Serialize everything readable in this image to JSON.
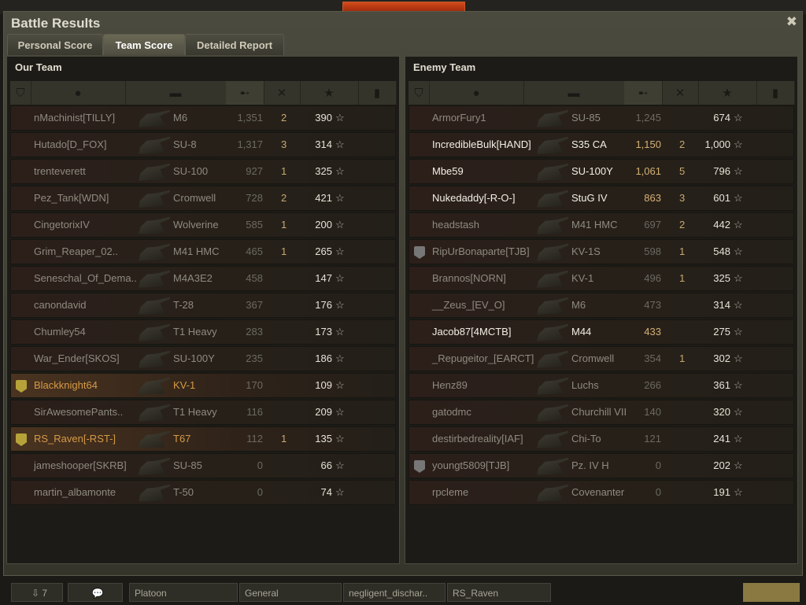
{
  "window": {
    "title": "Battle Results",
    "close_icon": "close-icon"
  },
  "tabs": [
    {
      "label": "Personal Score",
      "active": false
    },
    {
      "label": "Team Score",
      "active": true
    },
    {
      "label": "Detailed Report",
      "active": false
    }
  ],
  "columns": [
    "rank-icon",
    "player-icon",
    "tank-icon",
    "damage-icon",
    "kills-icon",
    "xp-star-icon",
    "medal-icon"
  ],
  "sorted_column": "damage",
  "colors": {
    "alive": "#f2f0e6",
    "dead": "#8e8b80",
    "platoon": "#d59a45",
    "damage": "#d6b074"
  },
  "our_team": {
    "title": "Our Team",
    "rows": [
      {
        "name": "nMachinist[TILLY]",
        "tank": "M6",
        "damage": "1,351",
        "kills": "2",
        "xp": "390",
        "alive": false
      },
      {
        "name": "Hutado[D_FOX]",
        "tank": "SU-8",
        "damage": "1,317",
        "kills": "3",
        "xp": "314",
        "alive": false
      },
      {
        "name": "trenteverett",
        "tank": "SU-100",
        "damage": "927",
        "kills": "1",
        "xp": "325",
        "alive": false
      },
      {
        "name": "Pez_Tank[WDN]",
        "tank": "Cromwell",
        "damage": "728",
        "kills": "2",
        "xp": "421",
        "alive": false
      },
      {
        "name": "CingetorixIV",
        "tank": "Wolverine",
        "damage": "585",
        "kills": "1",
        "xp": "200",
        "alive": false
      },
      {
        "name": "Grim_Reaper_02..",
        "tank": "M41 HMC",
        "damage": "465",
        "kills": "1",
        "xp": "265",
        "alive": false
      },
      {
        "name": "Seneschal_Of_Dema..",
        "tank": "M4A3E2",
        "damage": "458",
        "kills": "",
        "xp": "147",
        "alive": false
      },
      {
        "name": "canondavid",
        "tank": "T-28",
        "damage": "367",
        "kills": "",
        "xp": "176",
        "alive": false
      },
      {
        "name": "Chumley54",
        "tank": "T1 Heavy",
        "damage": "283",
        "kills": "",
        "xp": "173",
        "alive": false
      },
      {
        "name": "War_Ender[SKOS]",
        "tank": "SU-100Y",
        "damage": "235",
        "kills": "",
        "xp": "186",
        "alive": false
      },
      {
        "name": "Blackknight64",
        "tank": "KV-1",
        "damage": "170",
        "kills": "",
        "xp": "109",
        "alive": false,
        "platoon": true,
        "badge": "gold"
      },
      {
        "name": "SirAwesomePants..",
        "tank": "T1 Heavy",
        "damage": "116",
        "kills": "",
        "xp": "209",
        "alive": false
      },
      {
        "name": "RS_Raven[-RST-]",
        "tank": "T67",
        "damage": "112",
        "kills": "1",
        "xp": "135",
        "alive": false,
        "platoon": true,
        "badge": "gold"
      },
      {
        "name": "jameshooper[SKRB]",
        "tank": "SU-85",
        "damage": "0",
        "kills": "",
        "xp": "66",
        "alive": false
      },
      {
        "name": "martin_albamonte",
        "tank": "T-50",
        "damage": "0",
        "kills": "",
        "xp": "74",
        "alive": false
      }
    ]
  },
  "enemy_team": {
    "title": "Enemy Team",
    "rows": [
      {
        "name": "ArmorFury1",
        "tank": "SU-85",
        "damage": "1,245",
        "kills": "",
        "xp": "674",
        "alive": false
      },
      {
        "name": "IncredibleBulk[HAND]",
        "tank": "S35 CA",
        "damage": "1,150",
        "kills": "2",
        "xp": "1,000",
        "alive": true
      },
      {
        "name": "Mbe59",
        "tank": "SU-100Y",
        "damage": "1,061",
        "kills": "5",
        "xp": "796",
        "alive": true
      },
      {
        "name": "Nukedaddy[-R-O-]",
        "tank": "StuG IV",
        "damage": "863",
        "kills": "3",
        "xp": "601",
        "alive": true
      },
      {
        "name": "headstash",
        "tank": "M41 HMC",
        "damage": "697",
        "kills": "2",
        "xp": "442",
        "alive": false
      },
      {
        "name": "RipUrBonaparte[TJB]",
        "tank": "KV-1S",
        "damage": "598",
        "kills": "1",
        "xp": "548",
        "alive": false,
        "badge": "silver"
      },
      {
        "name": "Brannos[NORN]",
        "tank": "KV-1",
        "damage": "496",
        "kills": "1",
        "xp": "325",
        "alive": false
      },
      {
        "name": "__Zeus_[EV_O]",
        "tank": "M6",
        "damage": "473",
        "kills": "",
        "xp": "314",
        "alive": false
      },
      {
        "name": "Jacob87[4MCTB]",
        "tank": "M44",
        "damage": "433",
        "kills": "",
        "xp": "275",
        "alive": true
      },
      {
        "name": "_Repugeitor_[EARCT]",
        "tank": "Cromwell",
        "damage": "354",
        "kills": "1",
        "xp": "302",
        "alive": false
      },
      {
        "name": "Henz89",
        "tank": "Luchs",
        "damage": "266",
        "kills": "",
        "xp": "361",
        "alive": false
      },
      {
        "name": "gatodmc",
        "tank": "Churchill VII",
        "damage": "140",
        "kills": "",
        "xp": "320",
        "alive": false
      },
      {
        "name": "destirbedreality[IAF]",
        "tank": "Chi-To",
        "damage": "121",
        "kills": "",
        "xp": "241",
        "alive": false
      },
      {
        "name": "youngt5809[TJB]",
        "tank": "Pz. IV H",
        "damage": "0",
        "kills": "",
        "xp": "202",
        "alive": false,
        "badge": "silver"
      },
      {
        "name": "rpcleme",
        "tank": "Covenanter",
        "damage": "0",
        "kills": "",
        "xp": "191",
        "alive": false
      }
    ]
  },
  "bottom_bar": {
    "counter": "7",
    "channels": [
      "Platoon",
      "General",
      "negligent_dischar..",
      "RS_Raven"
    ]
  }
}
